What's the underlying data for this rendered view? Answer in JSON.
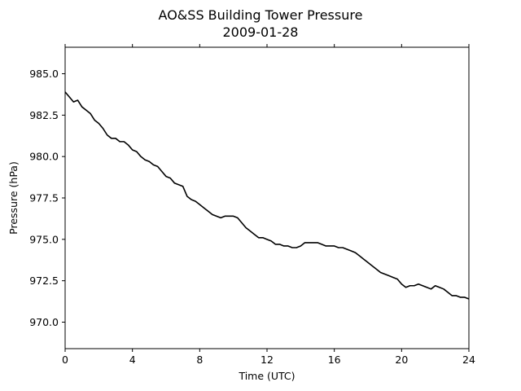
{
  "chart_data": {
    "type": "line",
    "title": "AO&SS Building Tower Pressure",
    "subtitle": "2009-01-28",
    "xlabel": "Time (UTC)",
    "ylabel": "Pressure (hPa)",
    "xlim": [
      0,
      24
    ],
    "ylim": [
      968.4,
      986.6
    ],
    "x_ticks": [
      0,
      4,
      8,
      12,
      16,
      20,
      24
    ],
    "x_tick_labels": [
      "0",
      "4",
      "8",
      "12",
      "16",
      "20",
      "24"
    ],
    "y_ticks": [
      970.0,
      972.5,
      975.0,
      977.5,
      980.0,
      982.5,
      985.0
    ],
    "y_tick_labels": [
      "970.0",
      "972.5",
      "975.0",
      "977.5",
      "980.0",
      "982.5",
      "985.0"
    ],
    "grid": false,
    "line_color": "#000000",
    "series": [
      {
        "x": [
          0,
          0.25,
          0.5,
          0.75,
          1.0,
          1.25,
          1.5,
          1.75,
          2.0,
          2.25,
          2.5,
          2.75,
          3.0,
          3.25,
          3.5,
          3.75,
          4.0,
          4.25,
          4.5,
          4.75,
          5.0,
          5.25,
          5.5,
          5.75,
          6.0,
          6.25,
          6.5,
          6.75,
          7.0,
          7.25,
          7.5,
          7.75,
          8.0,
          8.25,
          8.5,
          8.75,
          9.0,
          9.25,
          9.5,
          9.75,
          10.0,
          10.25,
          10.5,
          10.75,
          11.0,
          11.25,
          11.5,
          11.75,
          12.0,
          12.25,
          12.5,
          12.75,
          13.0,
          13.25,
          13.5,
          13.75,
          14.0,
          14.25,
          14.5,
          14.75,
          15.0,
          15.25,
          15.5,
          15.75,
          16.0,
          16.25,
          16.5,
          16.75,
          17.0,
          17.25,
          17.5,
          17.75,
          18.0,
          18.25,
          18.5,
          18.75,
          19.0,
          19.25,
          19.5,
          19.75,
          20.0,
          20.25,
          20.5,
          20.75,
          21.0,
          21.25,
          21.5,
          21.75,
          22.0,
          22.25,
          22.5,
          22.75,
          23.0,
          23.25,
          23.5,
          23.75,
          24.0
        ],
        "values": [
          983.9,
          983.6,
          983.3,
          983.4,
          983.0,
          982.8,
          982.6,
          982.2,
          982.0,
          981.7,
          981.3,
          981.1,
          981.1,
          980.9,
          980.9,
          980.7,
          980.4,
          980.3,
          980.0,
          979.8,
          979.7,
          979.5,
          979.4,
          979.1,
          978.8,
          978.7,
          978.4,
          978.3,
          978.2,
          977.6,
          977.4,
          977.3,
          977.1,
          976.9,
          976.7,
          976.5,
          976.4,
          976.3,
          976.4,
          976.4,
          976.4,
          976.3,
          976.0,
          975.7,
          975.5,
          975.3,
          975.1,
          975.1,
          975.0,
          974.9,
          974.7,
          974.7,
          974.6,
          974.6,
          974.5,
          974.5,
          974.6,
          974.8,
          974.8,
          974.8,
          974.8,
          974.7,
          974.6,
          974.6,
          974.6,
          974.5,
          974.5,
          974.4,
          974.3,
          974.2,
          974.0,
          973.8,
          973.6,
          973.4,
          973.2,
          973.0,
          972.9,
          972.8,
          972.7,
          972.6,
          972.3,
          972.1,
          972.2,
          972.2,
          972.3,
          972.2,
          972.1,
          972.0,
          972.2,
          972.1,
          972.0,
          971.8,
          971.6,
          971.6,
          971.5,
          971.5,
          971.4
        ]
      }
    ]
  }
}
